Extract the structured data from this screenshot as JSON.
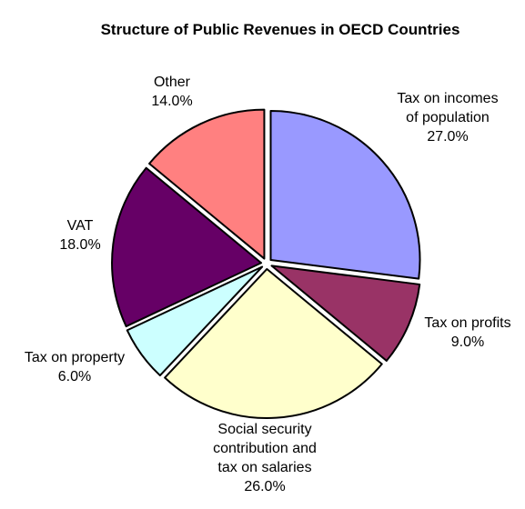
{
  "chart_data": {
    "type": "pie",
    "title": "Structure of Public Revenues in OECD Countries",
    "slices": [
      {
        "label_lines": [
          "Tax on incomes",
          "of population"
        ],
        "value_label": "27.0%",
        "value": 27.0,
        "color": "#9999ff"
      },
      {
        "label_lines": [
          "Tax on profits"
        ],
        "value_label": "9.0%",
        "value": 9.0,
        "color": "#993366"
      },
      {
        "label_lines": [
          "Social security",
          "contribution and",
          "tax on salaries"
        ],
        "value_label": "26.0%",
        "value": 26.0,
        "color": "#ffffcc"
      },
      {
        "label_lines": [
          "Tax on property"
        ],
        "value_label": "6.0%",
        "value": 6.0,
        "color": "#ccffff"
      },
      {
        "label_lines": [
          "VAT"
        ],
        "value_label": "18.0%",
        "value": 18.0,
        "color": "#660066"
      },
      {
        "label_lines": [
          "Other"
        ],
        "value_label": "14.0%",
        "value": 14.0,
        "color": "#ff8080"
      }
    ],
    "legend": "none",
    "exploded": true
  }
}
